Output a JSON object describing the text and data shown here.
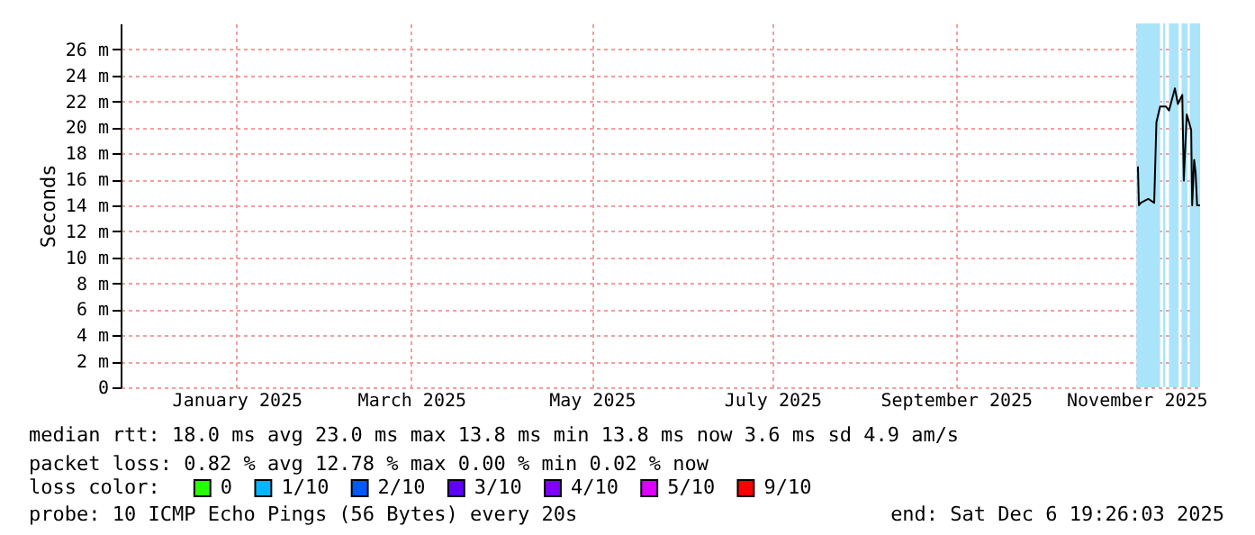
{
  "chart_data": {
    "type": "line",
    "ylabel": "Seconds",
    "legend_title": "loss color:",
    "x": [
      "2025-11-15T12:00",
      "2025-11-15T20:00",
      "2025-11-16T12:00",
      "2025-11-19T00:00",
      "2025-11-21T00:00",
      "2025-11-21T18:00",
      "2025-11-23T00:00",
      "2025-11-25T00:00",
      "2025-11-26T00:00",
      "2025-11-28T00:00",
      "2025-11-29T00:00",
      "2025-11-30T12:00",
      "2025-12-01T00:00",
      "2025-12-02T00:00",
      "2025-12-03T12:00",
      "2025-12-03T20:00",
      "2025-12-04T12:00",
      "2025-12-05T00:00",
      "2025-12-05T12:00",
      "2025-12-06T12:00"
    ],
    "series": [
      {
        "color": "#000000",
        "values": [
          17,
          14,
          14.2,
          14.5,
          14.2,
          20.4,
          21.6,
          21.6,
          21.3,
          23,
          21.8,
          22.5,
          15.9,
          21,
          19.8,
          14,
          17.5,
          16.5,
          14,
          14
        ]
      },
      {
        "name": "0",
        "color": "#26ff00",
        "values": [
          null,
          null,
          null,
          null,
          null,
          null,
          null,
          null,
          null,
          null,
          null,
          null,
          null,
          null,
          null,
          null,
          null,
          null,
          null,
          null
        ]
      },
      {
        "name": "1/10",
        "color": "#00b8ff",
        "values": [
          null,
          null,
          null,
          null,
          null,
          null,
          null,
          null,
          null,
          null,
          null,
          null,
          null,
          null,
          null,
          null,
          null,
          null,
          null,
          null
        ]
      },
      {
        "name": "2/10",
        "color": "#0059ff",
        "values": [
          null,
          null,
          null,
          null,
          null,
          null,
          null,
          null,
          null,
          null,
          null,
          null,
          null,
          null,
          null,
          null,
          null,
          null,
          null,
          null
        ]
      },
      {
        "name": "3/10",
        "color": "#5e00ff",
        "values": [
          null,
          null,
          null,
          null,
          null,
          null,
          null,
          null,
          null,
          null,
          null,
          null,
          null,
          null,
          null,
          null,
          null,
          null,
          null,
          null
        ]
      },
      {
        "name": "4/10",
        "color": "#7e00ff",
        "values": [
          null,
          null,
          null,
          null,
          null,
          null,
          null,
          null,
          null,
          null,
          null,
          null,
          null,
          null,
          null,
          null,
          null,
          null,
          null,
          null
        ]
      },
      {
        "name": "5/10",
        "color": "#dd00ff",
        "values": [
          null,
          null,
          null,
          null,
          null,
          null,
          null,
          null,
          null,
          null,
          null,
          null,
          null,
          null,
          null,
          null,
          null,
          null,
          null,
          null
        ]
      },
      {
        "name": "9/10",
        "color": "#ff0000",
        "values": [
          null,
          null,
          null,
          null,
          null,
          null,
          null,
          null,
          null,
          null,
          null,
          null,
          null,
          null,
          null,
          null,
          null,
          null,
          null,
          null
        ]
      }
    ],
    "bands": [
      {
        "axis": "x",
        "from": "2025-11-15T00:00",
        "to": "2025-11-23T00:00",
        "color": "#aae4fa"
      },
      {
        "axis": "x",
        "from": "2025-11-24T00:00",
        "to": "2025-11-24T18:00",
        "color": "#aae4fa"
      },
      {
        "axis": "x",
        "from": "2025-11-26T00:00",
        "to": "2025-11-29T06:00",
        "color": "#aae4fa"
      },
      {
        "axis": "x",
        "from": "2025-11-30T06:00",
        "to": "2025-12-02T06:00",
        "color": "#aae4fa"
      },
      {
        "axis": "x",
        "from": "2025-12-03T00:00",
        "to": "2025-12-06T12:00",
        "color": "#aae4fa"
      }
    ],
    "xlim": [
      "2024-12-06T19:26",
      "2025-12-06T19:26"
    ],
    "xticks": [
      {
        "value": "2025-01-15",
        "label": "January 2025"
      },
      {
        "value": "2025-03-15",
        "label": "March 2025"
      },
      {
        "value": "2025-05-15",
        "label": "May 2025"
      },
      {
        "value": "2025-07-15",
        "label": "July 2025"
      },
      {
        "value": "2025-09-15",
        "label": "September 2025"
      },
      {
        "value": "2025-11-15",
        "label": "November 2025"
      }
    ],
    "ylim": [
      0,
      28
    ],
    "yticks": [
      0,
      {
        "value": 2,
        "label": "2 m"
      },
      {
        "value": 4,
        "label": "4 m"
      },
      {
        "value": 6,
        "label": "6 m"
      },
      {
        "value": 8,
        "label": "8 m"
      },
      {
        "value": 10,
        "label": "10 m"
      },
      {
        "value": 12,
        "label": "12 m"
      },
      {
        "value": 14,
        "label": "14 m"
      },
      {
        "value": 16,
        "label": "16 m"
      },
      {
        "value": 18,
        "label": "18 m"
      },
      {
        "value": 20,
        "label": "20 m"
      },
      {
        "value": 22,
        "label": "22 m"
      },
      {
        "value": 24,
        "label": "24 m"
      },
      {
        "value": 26,
        "label": "26 m"
      }
    ],
    "grid": true,
    "legend": "bottom",
    "line_style": "solid",
    "marker": "none",
    "annotations": [
      "median rtt:  18.0 ms avg  23.0 ms max  13.8 ms min  13.8 ms now  3.6 ms sd  4.9   am/s",
      "packet loss: 0.82 % avg  12.78 % max  0.00 % min  0.02 % now",
      "probe:       10 ICMP Echo Pings (56 Bytes) every 20s",
      "end: Sat Dec  6 19:26:03 2025"
    ]
  }
}
